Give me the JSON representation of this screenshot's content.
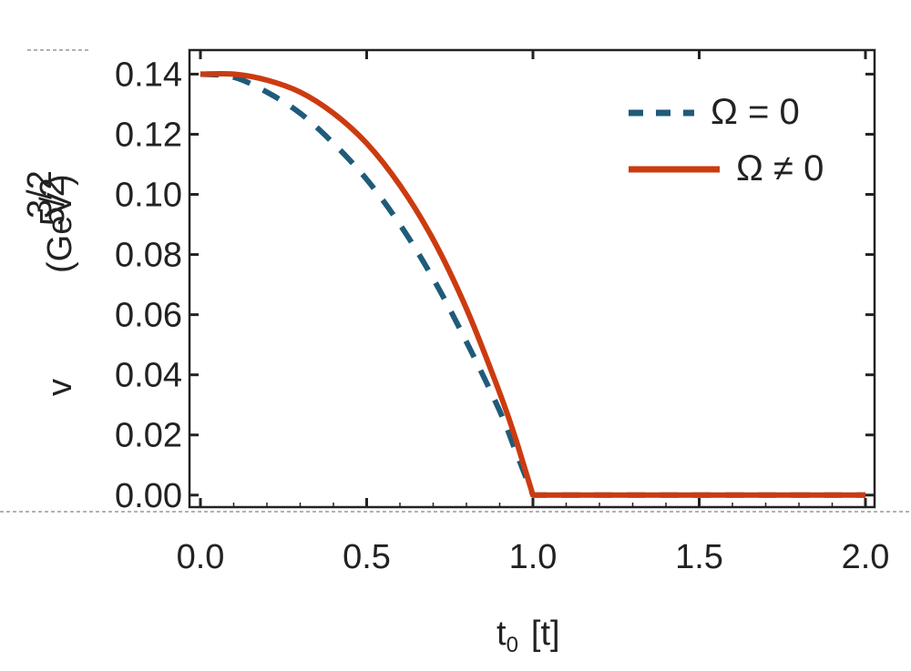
{
  "chart_data": {
    "type": "line",
    "title": "",
    "xlabel": "t",
    "xlabel_sub": "0",
    "xlabel_unit": "[t]",
    "ylabel": "v",
    "ylabel_unit_lines": [
      "(GeV",
      "3/2",
      "5/2",
      ")"
    ],
    "xlim": [
      0.0,
      2.0
    ],
    "ylim": [
      -0.004,
      0.148
    ],
    "xticks": [
      "0.0",
      "0.5",
      "1.0",
      "1.5",
      "2.0"
    ],
    "xtick_values": [
      0.0,
      0.5,
      1.0,
      1.5,
      2.0
    ],
    "yticks": [
      "0.14",
      "0.12",
      "0.10",
      "0.08",
      "0.06",
      "0.04",
      "0.02",
      "0.00"
    ],
    "ytick_values": [
      0.14,
      0.12,
      0.1,
      0.08,
      0.06,
      0.04,
      0.02,
      0.0
    ],
    "legend_position": "top-right",
    "grid": false,
    "series": [
      {
        "name": "Ω = 0",
        "color": "#1f5b7a",
        "style": "dashed",
        "x": [
          0.0,
          0.1,
          0.2,
          0.3,
          0.4,
          0.5,
          0.6,
          0.7,
          0.8,
          0.9,
          0.95,
          1.0,
          1.2,
          1.4,
          1.6,
          1.8,
          2.0
        ],
        "y": [
          0.14,
          0.139,
          0.134,
          0.127,
          0.117,
          0.105,
          0.09,
          0.072,
          0.051,
          0.028,
          0.014,
          0.0,
          0.0,
          0.0,
          0.0,
          0.0,
          0.0
        ]
      },
      {
        "name": "Ω ≠ 0",
        "color": "#cc3b10",
        "style": "solid",
        "x": [
          0.0,
          0.1,
          0.2,
          0.3,
          0.4,
          0.5,
          0.6,
          0.7,
          0.8,
          0.9,
          0.95,
          1.0,
          1.2,
          1.4,
          1.6,
          1.8,
          2.0
        ],
        "y": [
          0.14,
          0.14,
          0.138,
          0.134,
          0.127,
          0.117,
          0.103,
          0.085,
          0.062,
          0.034,
          0.018,
          0.0,
          0.0,
          0.0,
          0.0,
          0.0,
          0.0
        ]
      }
    ]
  }
}
